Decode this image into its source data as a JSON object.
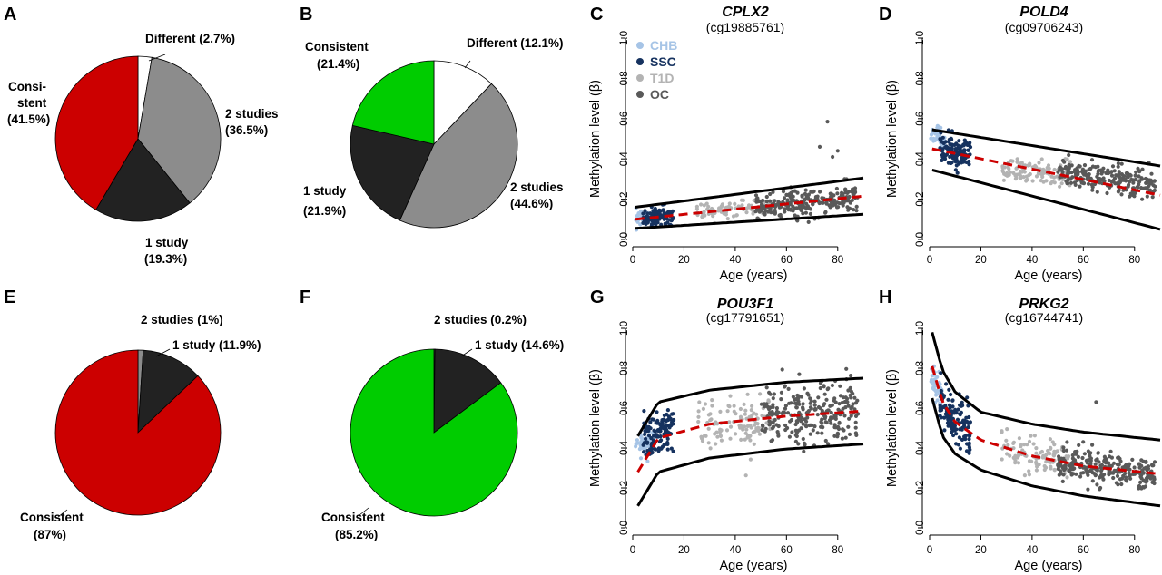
{
  "colors": {
    "chb": "#a6c4e6",
    "ssc": "#16325f",
    "t1d": "#b3b3b3",
    "oc": "#595959",
    "red": "#cc0000",
    "green": "#00cc00",
    "dark": "#222222",
    "gray": "#8c8c8c",
    "white": "#ffffff"
  },
  "panels": {
    "A": {
      "letter": "A",
      "labels": [
        "Different (2.7%)",
        "Consi-",
        "stent",
        "(41.5%)",
        "2 studies",
        "(36.5%)",
        "1 study",
        "(19.3%)"
      ]
    },
    "B": {
      "letter": "B",
      "labels": [
        "Different (12.1%)",
        "Consistent",
        "(21.4%)",
        "2 studies",
        "(44.6%)",
        "1 study",
        "(21.9%)"
      ]
    },
    "E": {
      "letter": "E",
      "labels": [
        "2 studies (1%)",
        "1 study (11.9%)",
        "Consistent",
        "(87%)"
      ]
    },
    "F": {
      "letter": "F",
      "labels": [
        "2 studies (0.2%)",
        "1 study (14.6%)",
        "Consistent",
        "(85.2%)"
      ]
    },
    "C": {
      "letter": "C",
      "gene": "CPLX2",
      "probe": "(cg19885761)"
    },
    "D": {
      "letter": "D",
      "gene": "POLD4",
      "probe": "(cg09706243)"
    },
    "G": {
      "letter": "G",
      "gene": "POU3F1",
      "probe": "(cg17791651)"
    },
    "H": {
      "letter": "H",
      "gene": "PRKG2",
      "probe": "(cg16744741)"
    }
  },
  "chart_data": [
    {
      "panel": "A",
      "type": "pie",
      "title": "",
      "slices": [
        {
          "label": "Different",
          "value": 2.7,
          "color": "#ffffff"
        },
        {
          "label": "2 studies",
          "value": 36.5,
          "color": "#8c8c8c"
        },
        {
          "label": "1 study",
          "value": 19.3,
          "color": "#222222"
        },
        {
          "label": "Consistent",
          "value": 41.5,
          "color": "#cc0000"
        }
      ]
    },
    {
      "panel": "B",
      "type": "pie",
      "title": "",
      "slices": [
        {
          "label": "Different",
          "value": 12.1,
          "color": "#ffffff"
        },
        {
          "label": "2 studies",
          "value": 44.6,
          "color": "#8c8c8c"
        },
        {
          "label": "1 study",
          "value": 21.9,
          "color": "#222222"
        },
        {
          "label": "Consistent",
          "value": 21.4,
          "color": "#00cc00"
        }
      ]
    },
    {
      "panel": "E",
      "type": "pie",
      "title": "",
      "slices": [
        {
          "label": "2 studies",
          "value": 1,
          "color": "#8c8c8c"
        },
        {
          "label": "1 study",
          "value": 11.9,
          "color": "#222222"
        },
        {
          "label": "Consistent",
          "value": 87,
          "color": "#cc0000"
        }
      ]
    },
    {
      "panel": "F",
      "type": "pie",
      "title": "",
      "slices": [
        {
          "label": "2 studies",
          "value": 0.2,
          "color": "#8c8c8c"
        },
        {
          "label": "1 study",
          "value": 14.6,
          "color": "#222222"
        },
        {
          "label": "Consistent",
          "value": 85.2,
          "color": "#00cc00"
        }
      ]
    },
    {
      "panel": "C",
      "type": "scatter",
      "title": "CPLX2 (cg19885761)",
      "xlabel": "Age (years)",
      "ylabel": "Methylation level (β)",
      "xlim": [
        0,
        90
      ],
      "ylim": [
        0,
        1
      ],
      "xticks": [
        0,
        20,
        40,
        60,
        80
      ],
      "yticks": [
        0.0,
        0.2,
        0.4,
        0.6,
        0.8,
        1.0
      ],
      "ytick_labels": [
        "0.0",
        "0.2",
        "0.4",
        "0.6",
        "0.8",
        "1.0"
      ],
      "legend": {
        "position": "top-left",
        "entries": [
          {
            "name": "CHB",
            "color": "#a6c4e6"
          },
          {
            "name": "SSC",
            "color": "#16325f"
          },
          {
            "name": "T1D",
            "color": "#b3b3b3"
          },
          {
            "name": "OC",
            "color": "#595959"
          }
        ]
      },
      "fit": {
        "mean": {
          "x": [
            1,
            90
          ],
          "y": [
            0.1,
            0.215
          ]
        },
        "upper": {
          "x": [
            1,
            90
          ],
          "y": [
            0.16,
            0.305
          ]
        },
        "lower": {
          "x": [
            1,
            90
          ],
          "y": [
            0.055,
            0.125
          ]
        }
      },
      "groups": [
        {
          "name": "CHB",
          "age": [
            1,
            10
          ],
          "mean": [
            0.1,
            0.11
          ],
          "sd": 0.02,
          "n": 45,
          "outliers": []
        },
        {
          "name": "SSC",
          "age": [
            4,
            16
          ],
          "mean": [
            0.105,
            0.12
          ],
          "sd": 0.025,
          "n": 110,
          "outliers": []
        },
        {
          "name": "T1D",
          "age": [
            25,
            55
          ],
          "mean": [
            0.135,
            0.165
          ],
          "sd": 0.022,
          "n": 90,
          "outliers": []
        },
        {
          "name": "OC",
          "age": [
            48,
            88
          ],
          "mean": [
            0.16,
            0.21
          ],
          "sd": 0.035,
          "n": 240,
          "outliers": [
            [
              76,
              0.585
            ],
            [
              73,
              0.46
            ],
            [
              80,
              0.44
            ],
            [
              78,
              0.41
            ]
          ]
        }
      ]
    },
    {
      "panel": "D",
      "type": "scatter",
      "title": "POLD4 (cg09706243)",
      "xlabel": "Age (years)",
      "ylabel": "Methylation level (β)",
      "xlim": [
        0,
        90
      ],
      "ylim": [
        0,
        1
      ],
      "xticks": [
        0,
        20,
        40,
        60,
        80
      ],
      "yticks": [
        0.0,
        0.2,
        0.4,
        0.6,
        0.8,
        1.0
      ],
      "ytick_labels": [
        "0.0",
        "0.2",
        "0.4",
        "0.6",
        "0.8",
        "1.0"
      ],
      "fit": {
        "mean": {
          "x": [
            1,
            90
          ],
          "y": [
            0.45,
            0.22
          ]
        },
        "upper": {
          "x": [
            1,
            90
          ],
          "y": [
            0.545,
            0.365
          ]
        },
        "lower": {
          "x": [
            1,
            90
          ],
          "y": [
            0.345,
            0.05
          ]
        }
      },
      "groups": [
        {
          "name": "CHB",
          "age": [
            0.5,
            6
          ],
          "mean": [
            0.52,
            0.49
          ],
          "sd": 0.025,
          "n": 45,
          "outliers": []
        },
        {
          "name": "SSC",
          "age": [
            4,
            16
          ],
          "mean": [
            0.45,
            0.42
          ],
          "sd": 0.04,
          "n": 120,
          "outliers": []
        },
        {
          "name": "T1D",
          "age": [
            28,
            55
          ],
          "mean": [
            0.35,
            0.32
          ],
          "sd": 0.03,
          "n": 110,
          "outliers": []
        },
        {
          "name": "OC",
          "age": [
            50,
            88
          ],
          "mean": [
            0.33,
            0.27
          ],
          "sd": 0.035,
          "n": 230,
          "outliers": []
        }
      ]
    },
    {
      "panel": "G",
      "type": "scatter",
      "title": "POU3F1 (cg17791651)",
      "xlabel": "Age (years)",
      "ylabel": "Methylation level (β)",
      "xlim": [
        0,
        90
      ],
      "ylim": [
        0,
        1
      ],
      "xticks": [
        0,
        20,
        40,
        60,
        80
      ],
      "yticks": [
        0.0,
        0.2,
        0.4,
        0.6,
        0.8,
        1.0
      ],
      "ytick_labels": [
        "0.0",
        "0.2",
        "0.4",
        "0.6",
        "0.8",
        "1.0"
      ],
      "fit": {
        "mean": {
          "x": [
            2,
            10,
            30,
            60,
            90
          ],
          "y": [
            0.28,
            0.45,
            0.52,
            0.56,
            0.585
          ]
        },
        "upper": {
          "x": [
            2,
            10,
            30,
            60,
            90
          ],
          "y": [
            0.46,
            0.63,
            0.69,
            0.73,
            0.75
          ]
        },
        "lower": {
          "x": [
            2,
            10,
            30,
            60,
            90
          ],
          "y": [
            0.11,
            0.28,
            0.35,
            0.395,
            0.42
          ]
        }
      },
      "groups": [
        {
          "name": "CHB",
          "age": [
            1,
            8
          ],
          "mean": [
            0.42,
            0.43
          ],
          "sd": 0.035,
          "n": 50,
          "outliers": []
        },
        {
          "name": "SSC",
          "age": [
            4,
            16
          ],
          "mean": [
            0.44,
            0.5
          ],
          "sd": 0.05,
          "n": 120,
          "outliers": []
        },
        {
          "name": "T1D",
          "age": [
            25,
            55
          ],
          "mean": [
            0.51,
            0.54
          ],
          "sd": 0.06,
          "n": 120,
          "outliers": []
        },
        {
          "name": "OC",
          "age": [
            50,
            88
          ],
          "mean": [
            0.56,
            0.58
          ],
          "sd": 0.07,
          "n": 260,
          "outliers": []
        }
      ]
    },
    {
      "panel": "H",
      "type": "scatter",
      "title": "PRKG2 (cg16744741)",
      "xlabel": "Age (years)",
      "ylabel": "Methylation level (β)",
      "xlim": [
        0,
        90
      ],
      "ylim": [
        0,
        1
      ],
      "xticks": [
        0,
        20,
        40,
        60,
        80
      ],
      "yticks": [
        0.0,
        0.2,
        0.4,
        0.6,
        0.8,
        1.0
      ],
      "ytick_labels": [
        "0.0",
        "0.2",
        "0.4",
        "0.6",
        "0.8",
        "1.0"
      ],
      "fit": {
        "mean": {
          "x": [
            1,
            5,
            10,
            20,
            40,
            60,
            90
          ],
          "y": [
            0.81,
            0.63,
            0.53,
            0.44,
            0.36,
            0.31,
            0.27
          ]
        },
        "upper": {
          "x": [
            1,
            5,
            10,
            20,
            40,
            60,
            90
          ],
          "y": [
            0.98,
            0.79,
            0.68,
            0.58,
            0.52,
            0.48,
            0.44
          ]
        },
        "lower": {
          "x": [
            1,
            5,
            10,
            20,
            40,
            60,
            90
          ],
          "y": [
            0.65,
            0.46,
            0.37,
            0.29,
            0.21,
            0.16,
            0.11
          ]
        }
      },
      "groups": [
        {
          "name": "CHB",
          "age": [
            0.5,
            5
          ],
          "mean": [
            0.78,
            0.65
          ],
          "sd": 0.05,
          "n": 50,
          "outliers": []
        },
        {
          "name": "SSC",
          "age": [
            4,
            16
          ],
          "mean": [
            0.62,
            0.47
          ],
          "sd": 0.06,
          "n": 120,
          "outliers": []
        },
        {
          "name": "T1D",
          "age": [
            28,
            55
          ],
          "mean": [
            0.4,
            0.33
          ],
          "sd": 0.05,
          "n": 110,
          "outliers": []
        },
        {
          "name": "OC",
          "age": [
            50,
            88
          ],
          "mean": [
            0.33,
            0.27
          ],
          "sd": 0.04,
          "n": 260,
          "outliers": [
            [
              65,
              0.63
            ]
          ]
        }
      ]
    }
  ]
}
